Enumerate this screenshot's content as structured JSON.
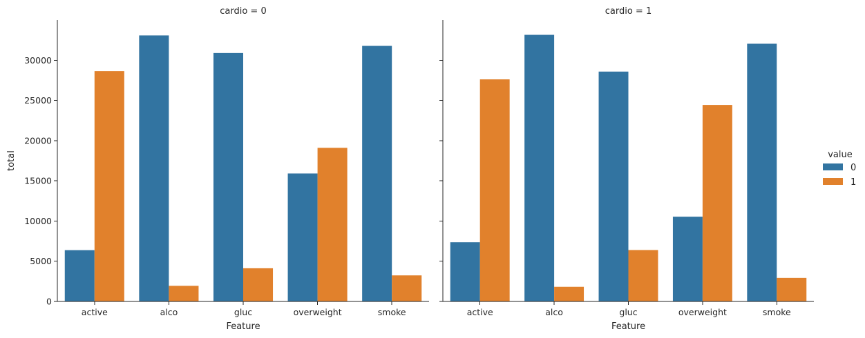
{
  "chart_data": {
    "type": "bar",
    "ylabel": "total",
    "xlabel": "Feature",
    "ylim": [
      0,
      35000
    ],
    "yticks": [
      0,
      5000,
      10000,
      15000,
      20000,
      25000,
      30000
    ],
    "categories": [
      "active",
      "alco",
      "gluc",
      "overweight",
      "smoke"
    ],
    "legend": {
      "title": "value",
      "placement": "right",
      "entries": [
        {
          "label": "0",
          "color": "#3274a1"
        },
        {
          "label": "1",
          "color": "#e1812c"
        }
      ]
    },
    "facets": [
      {
        "title": "cardio = 0",
        "series": [
          {
            "name": "0",
            "values": [
              6378,
              33080,
              30894,
              15915,
              31781
            ]
          },
          {
            "name": "1",
            "values": [
              28643,
              1941,
              4127,
              19106,
              3240
            ]
          }
        ]
      },
      {
        "title": "cardio = 1",
        "series": [
          {
            "name": "0",
            "values": [
              7361,
              33156,
              28585,
              10539,
              32050
            ]
          },
          {
            "name": "1",
            "values": [
              27618,
              1823,
              6394,
              24440,
              2929
            ]
          }
        ]
      }
    ]
  }
}
